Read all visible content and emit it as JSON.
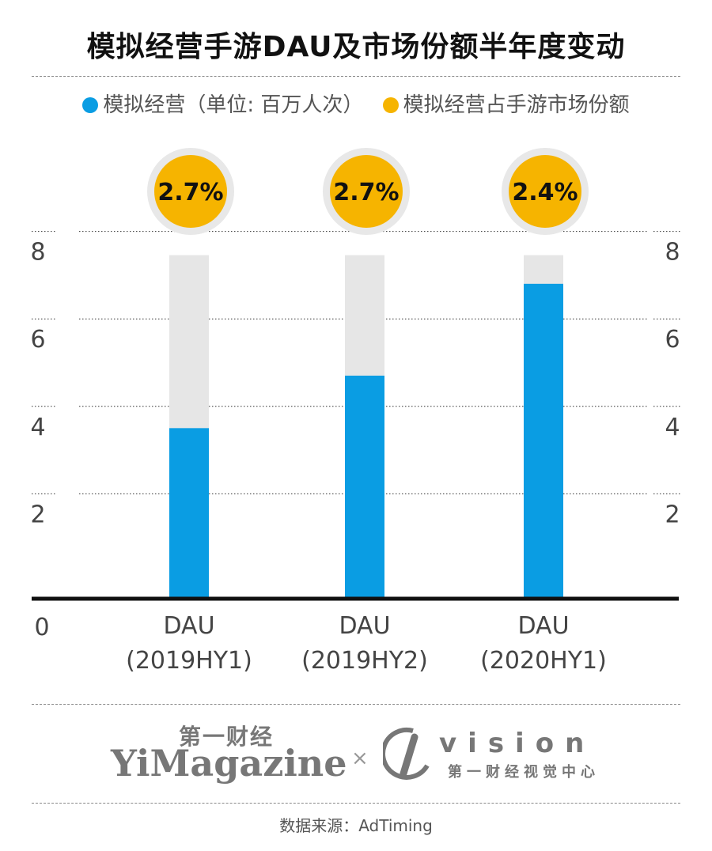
{
  "title": "模拟经营手游DAU及市场份额半年度变动",
  "legend": [
    {
      "label": "模拟经营（单位: 百万人次）",
      "color": "#0a9de3"
    },
    {
      "label": "模拟经营占手游市场份额",
      "color": "#f6b400"
    }
  ],
  "chart_data": {
    "type": "bar",
    "categories": [
      "DAU\n(2019HY1)",
      "DAU\n(2019HY2)",
      "DAU\n(2020HY1)"
    ],
    "series": [
      {
        "name": "模拟经营（单位: 百万人次）",
        "values": [
          3.9,
          5.1,
          7.2
        ]
      },
      {
        "name": "模拟经营占手游市场份额",
        "values": [
          "2.7%",
          "2.7%",
          "2.4%"
        ]
      }
    ],
    "yticks": [
      "2",
      "4",
      "6",
      "8"
    ],
    "y_zero_label": "0",
    "ylim": [
      0,
      8
    ],
    "bar_color": "#0a9de3",
    "bar_bg_color": "#e6e6e6",
    "share_color": "#f6b400",
    "grid": true
  },
  "footer": {
    "logo1_cn": "第一财经",
    "logo1": "YiMagazine",
    "x": "×",
    "vision": "vision",
    "vision_cn": "第一财经视觉中心"
  },
  "source": "数据来源：AdTiming"
}
